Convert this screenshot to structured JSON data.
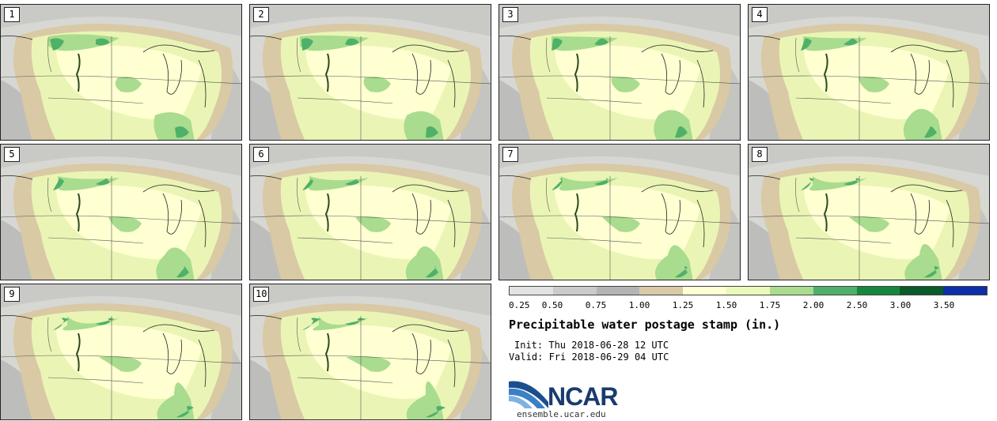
{
  "stamps": [
    {
      "label": "1"
    },
    {
      "label": "2"
    },
    {
      "label": "3"
    },
    {
      "label": "4"
    },
    {
      "label": "5"
    },
    {
      "label": "6"
    },
    {
      "label": "7"
    },
    {
      "label": "8"
    },
    {
      "label": "9"
    },
    {
      "label": "10"
    }
  ],
  "colorbar": {
    "labels": [
      "0.25",
      "0.50",
      "0.75",
      "1.00",
      "1.25",
      "1.50",
      "1.75",
      "2.00",
      "2.50",
      "3.00",
      "3.50"
    ],
    "colors": [
      "#e3e3e3",
      "#cbcbcb",
      "#b4b4b4",
      "#d9c9a6",
      "#ffffd4",
      "#eaf8b8",
      "#a9dc8e",
      "#4fb069",
      "#17873f",
      "#0b5a2a",
      "#0d2ea8"
    ]
  },
  "title": "Precipitable water postage stamp (in.)",
  "init": "Init: Thu 2018-06-28 12 UTC",
  "valid": "Valid: Fri 2018-06-29 04 UTC",
  "logo": {
    "text": "NCAR",
    "website": "ensemble.ucar.edu"
  }
}
